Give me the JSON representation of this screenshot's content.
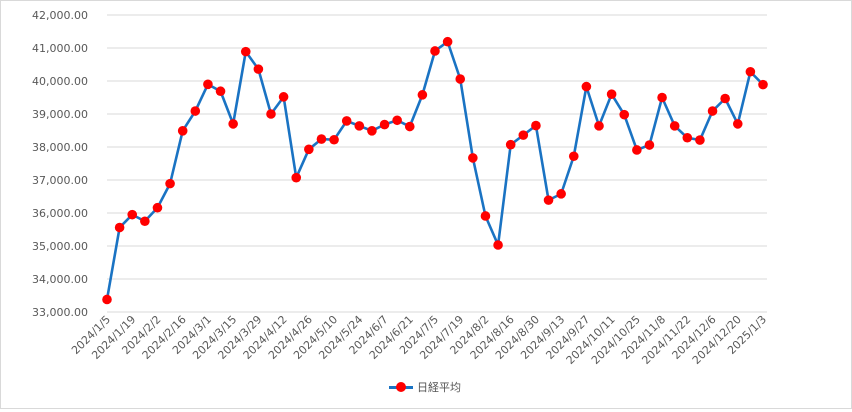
{
  "chart_data": {
    "type": "line",
    "title": "",
    "xlabel": "",
    "ylabel": "",
    "ylim": [
      33000,
      42000
    ],
    "y_ticks": [
      33000,
      34000,
      35000,
      36000,
      37000,
      38000,
      39000,
      40000,
      41000,
      42000
    ],
    "y_tick_labels": [
      "33,000.00",
      "34,000.00",
      "35,000.00",
      "36,000.00",
      "37,000.00",
      "38,000.00",
      "39,000.00",
      "40,000.00",
      "41,000.00",
      "42,000.00"
    ],
    "grid": "horizontal",
    "legend_position": "bottom",
    "colors": {
      "line": "#1a73c3",
      "marker": "#ff0000",
      "grid": "#d9d9d9",
      "text": "#595959"
    },
    "x": [
      "2024/1/5",
      "2024/1/12",
      "2024/1/19",
      "2024/1/26",
      "2024/2/2",
      "2024/2/9",
      "2024/2/16",
      "2024/2/22",
      "2024/3/1",
      "2024/3/8",
      "2024/3/15",
      "2024/3/22",
      "2024/3/29",
      "2024/4/5",
      "2024/4/12",
      "2024/4/19",
      "2024/4/26",
      "2024/5/2",
      "2024/5/10",
      "2024/5/17",
      "2024/5/24",
      "2024/5/31",
      "2024/6/7",
      "2024/6/14",
      "2024/6/21",
      "2024/6/28",
      "2024/7/5",
      "2024/7/12",
      "2024/7/19",
      "2024/7/26",
      "2024/8/2",
      "2024/8/9",
      "2024/8/16",
      "2024/8/23",
      "2024/8/30",
      "2024/9/6",
      "2024/9/13",
      "2024/9/20",
      "2024/9/27",
      "2024/10/4",
      "2024/10/11",
      "2024/10/18",
      "2024/10/25",
      "2024/11/1",
      "2024/11/8",
      "2024/11/15",
      "2024/11/22",
      "2024/11/29",
      "2024/12/6",
      "2024/12/13",
      "2024/12/20",
      "2024/12/27",
      "2025/1/3"
    ],
    "x_tick_labels": [
      "2024/1/5",
      "",
      "2024/1/19",
      "",
      "2024/2/2",
      "",
      "2024/2/16",
      "",
      "2024/3/1",
      "",
      "2024/3/15",
      "",
      "2024/3/29",
      "",
      "2024/4/12",
      "",
      "2024/4/26",
      "",
      "2024/5/10",
      "",
      "2024/5/24",
      "",
      "2024/6/7",
      "",
      "2024/6/21",
      "",
      "2024/7/5",
      "",
      "2024/7/19",
      "",
      "2024/8/2",
      "",
      "2024/8/16",
      "",
      "2024/8/30",
      "",
      "2024/9/13",
      "",
      "2024/9/27",
      "",
      "2024/10/11",
      "",
      "2024/10/25",
      "",
      "2024/11/8",
      "",
      "2024/11/22",
      "",
      "2024/12/6",
      "",
      "2024/12/20",
      "",
      "2025/1/3"
    ],
    "series": [
      {
        "name": "日経平均",
        "values": [
          33380,
          35560,
          35950,
          35750,
          36160,
          36890,
          38490,
          39090,
          39900,
          39690,
          38700,
          40890,
          40360,
          39000,
          39520,
          37070,
          37930,
          38240,
          38220,
          38790,
          38640,
          38490,
          38680,
          38810,
          38620,
          39580,
          40910,
          41190,
          40060,
          37670,
          35910,
          35030,
          38070,
          38360,
          38650,
          36390,
          36580,
          37720,
          39830,
          38640,
          39600,
          38980,
          37910,
          38060,
          39500,
          38640,
          38280,
          38210,
          39090,
          39470,
          38700,
          40280,
          39890
        ]
      }
    ]
  }
}
